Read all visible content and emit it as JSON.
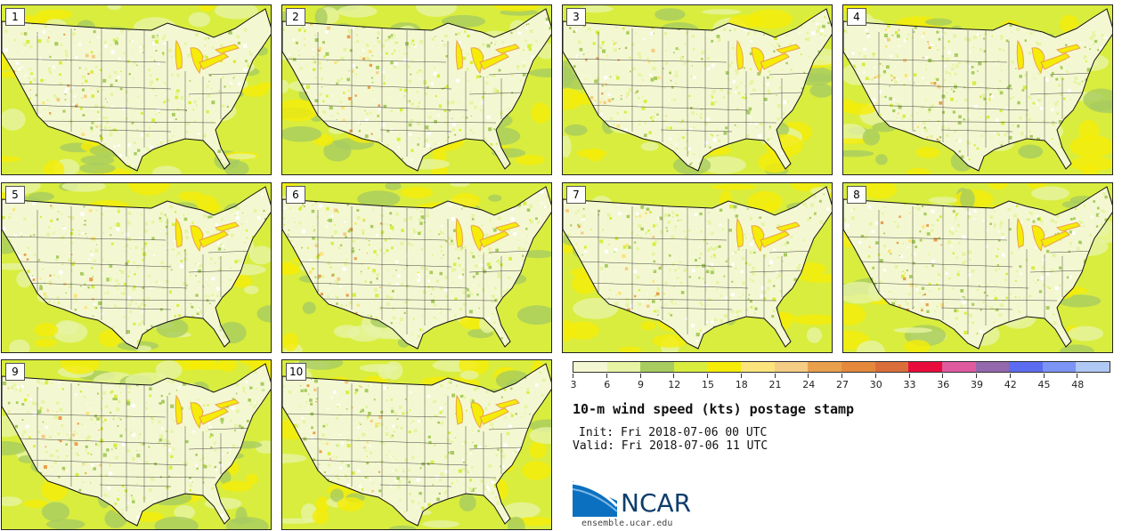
{
  "panels": [
    {
      "label": "1"
    },
    {
      "label": "2"
    },
    {
      "label": "3"
    },
    {
      "label": "4"
    },
    {
      "label": "5"
    },
    {
      "label": "6"
    },
    {
      "label": "7"
    },
    {
      "label": "8"
    },
    {
      "label": "9"
    },
    {
      "label": "10"
    }
  ],
  "colorbar": {
    "colors": [
      "#f4f8d2",
      "#e6f4a4",
      "#a8cc60",
      "#d9ed3e",
      "#f5ec08",
      "#fbe47c",
      "#f4cc84",
      "#e9a04c",
      "#e4893c",
      "#da6e3a",
      "#e80c3c",
      "#e05aa0",
      "#9468ac",
      "#5c6cf0",
      "#7c94f4",
      "#b0c8f4"
    ],
    "ticks": [
      "3",
      "6",
      "9",
      "12",
      "15",
      "18",
      "21",
      "24",
      "27",
      "30",
      "33",
      "36",
      "39",
      "42",
      "45",
      "48"
    ]
  },
  "title": "10-m wind speed (kts) postage stamp",
  "init": "Init: Fri 2018-07-06 00 UTC",
  "valid": "Valid: Fri 2018-07-06 11 UTC",
  "logo": {
    "text": "NCAR",
    "site": "ensemble.ucar.edu",
    "brand_color": "#0e3d6b"
  }
}
